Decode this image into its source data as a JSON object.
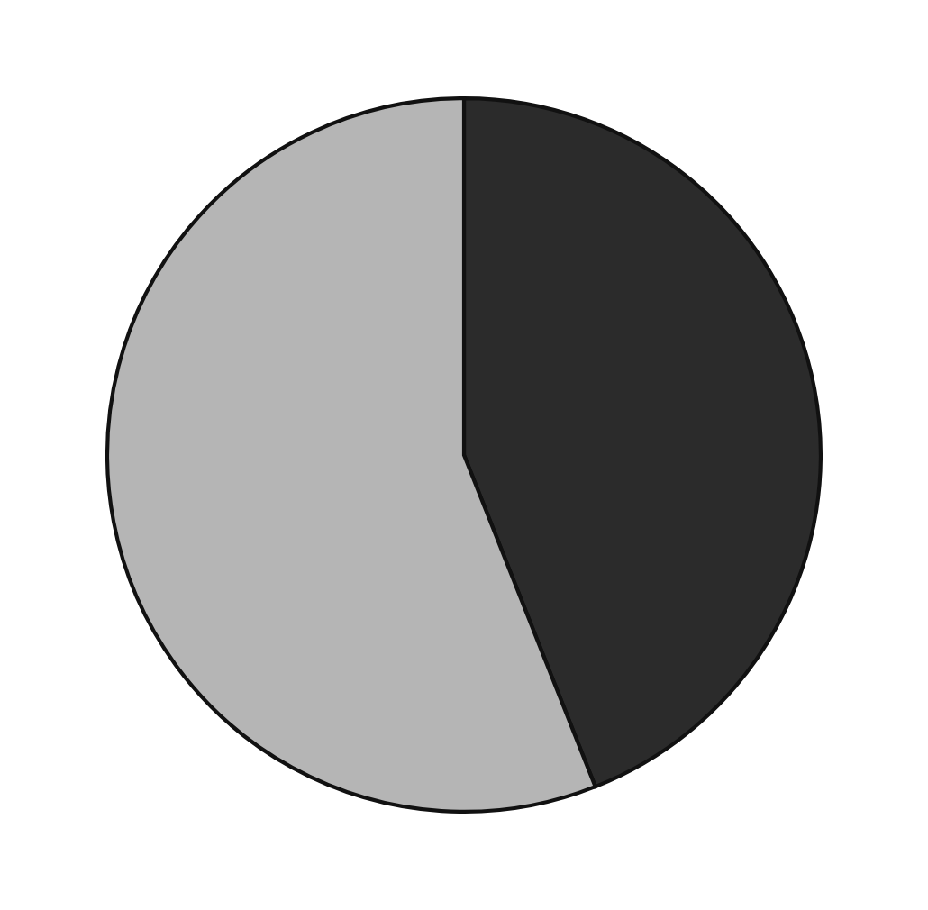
{
  "chart_data": {
    "type": "pie",
    "categories": [
      null,
      null
    ],
    "values": [
      44,
      56
    ],
    "colors": [
      "#2b2b2b",
      "#b5b5b5"
    ]
  }
}
